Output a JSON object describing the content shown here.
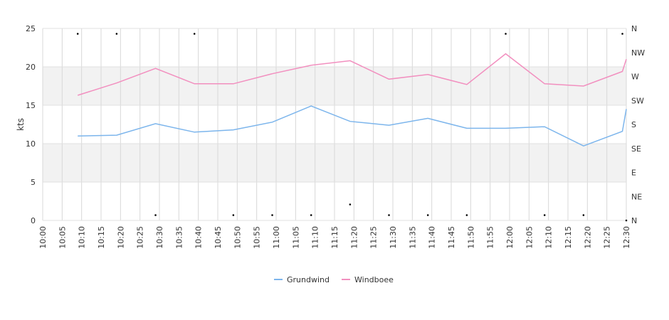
{
  "chart_data": {
    "type": "line",
    "ylabel": "kts",
    "ylim": [
      0,
      25
    ],
    "yticks": [
      0,
      5,
      10,
      15,
      20,
      25
    ],
    "y2_ticks": [
      "N",
      "NE",
      "E",
      "SE",
      "S",
      "SW",
      "W",
      "NW",
      "N"
    ],
    "x_ticks": [
      "10:00",
      "10:05",
      "10:10",
      "10:15",
      "10:20",
      "10:25",
      "10:30",
      "10:35",
      "10:40",
      "10:45",
      "10:50",
      "10:55",
      "11:00",
      "11:05",
      "11:10",
      "11:15",
      "11:20",
      "11:25",
      "11:30",
      "11:35",
      "11:40",
      "11:45",
      "11:50",
      "11:55",
      "12:00",
      "12:05",
      "12:10",
      "12:15",
      "12:20",
      "12:25",
      "12:30"
    ],
    "x_minutes_range": [
      0,
      150
    ],
    "band_color": "#f2f2f2",
    "grid": true,
    "legend_position": "bottom-center",
    "series": [
      {
        "name": "Grundwind",
        "color": "#7cb5ec",
        "x": [
          "10:09",
          "10:19",
          "10:29",
          "10:39",
          "10:49",
          "10:59",
          "11:09",
          "11:19",
          "11:29",
          "11:39",
          "11:49",
          "11:59",
          "12:09",
          "12:19",
          "12:29",
          "12:30"
        ],
        "values": [
          11.0,
          11.1,
          12.6,
          11.5,
          11.8,
          12.8,
          14.9,
          12.9,
          12.4,
          13.3,
          12.0,
          12.0,
          12.2,
          9.7,
          11.6,
          14.5
        ]
      },
      {
        "name": "Windboee",
        "color": "#f28fbf",
        "x": [
          "10:09",
          "10:19",
          "10:29",
          "10:39",
          "10:49",
          "10:59",
          "11:09",
          "11:19",
          "11:29",
          "11:39",
          "11:49",
          "11:59",
          "12:09",
          "12:19",
          "12:29",
          "12:30"
        ],
        "values": [
          16.3,
          17.9,
          19.8,
          17.8,
          17.8,
          19.1,
          20.2,
          20.8,
          18.4,
          19.0,
          17.7,
          21.7,
          17.8,
          17.5,
          19.4,
          21.0
        ]
      }
    ],
    "direction_points": {
      "x": [
        "10:09",
        "10:19",
        "10:29",
        "10:39",
        "10:49",
        "10:59",
        "11:09",
        "11:19",
        "11:29",
        "11:39",
        "11:49",
        "11:59",
        "12:09",
        "12:19",
        "12:29",
        "12:30"
      ],
      "values": [
        350,
        350,
        10,
        350,
        10,
        10,
        10,
        30,
        10,
        10,
        10,
        350,
        10,
        10,
        350,
        0
      ]
    }
  }
}
